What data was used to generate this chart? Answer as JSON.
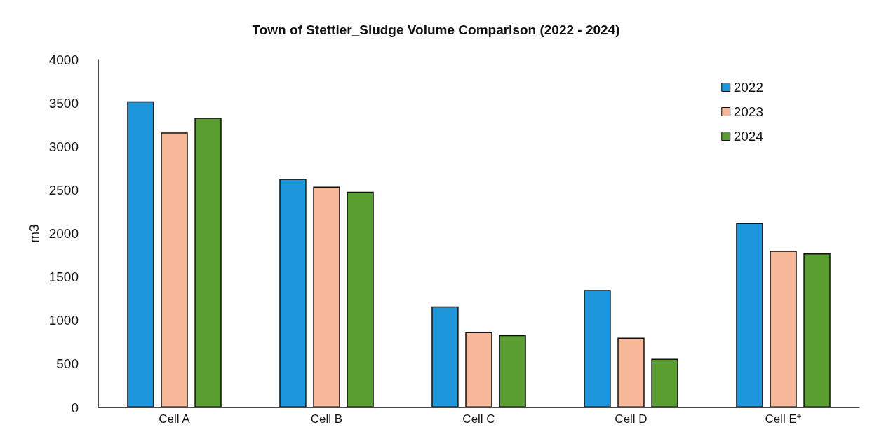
{
  "chart_data": {
    "type": "bar",
    "title": "Town of Stettler_Sludge Volume Comparison (2022 - 2024)",
    "ylabel": "m3",
    "categories": [
      "Cell A",
      "Cell B",
      "Cell C",
      "Cell D",
      "Cell E*"
    ],
    "series": [
      {
        "name": "2022",
        "color": "#1e96dc",
        "values": [
          3520,
          2630,
          1160,
          1350,
          2120
        ]
      },
      {
        "name": "2023",
        "color": "#f7b89a",
        "values": [
          3160,
          2540,
          870,
          800,
          1800
        ]
      },
      {
        "name": "2024",
        "color": "#5a9e32",
        "values": [
          3330,
          2480,
          830,
          560,
          1770
        ]
      }
    ],
    "ylim": [
      0,
      4000
    ],
    "yticks": [
      0,
      500,
      1000,
      1500,
      2000,
      2500,
      3000,
      3500,
      4000
    ],
    "grid": false,
    "legend": "top right"
  }
}
